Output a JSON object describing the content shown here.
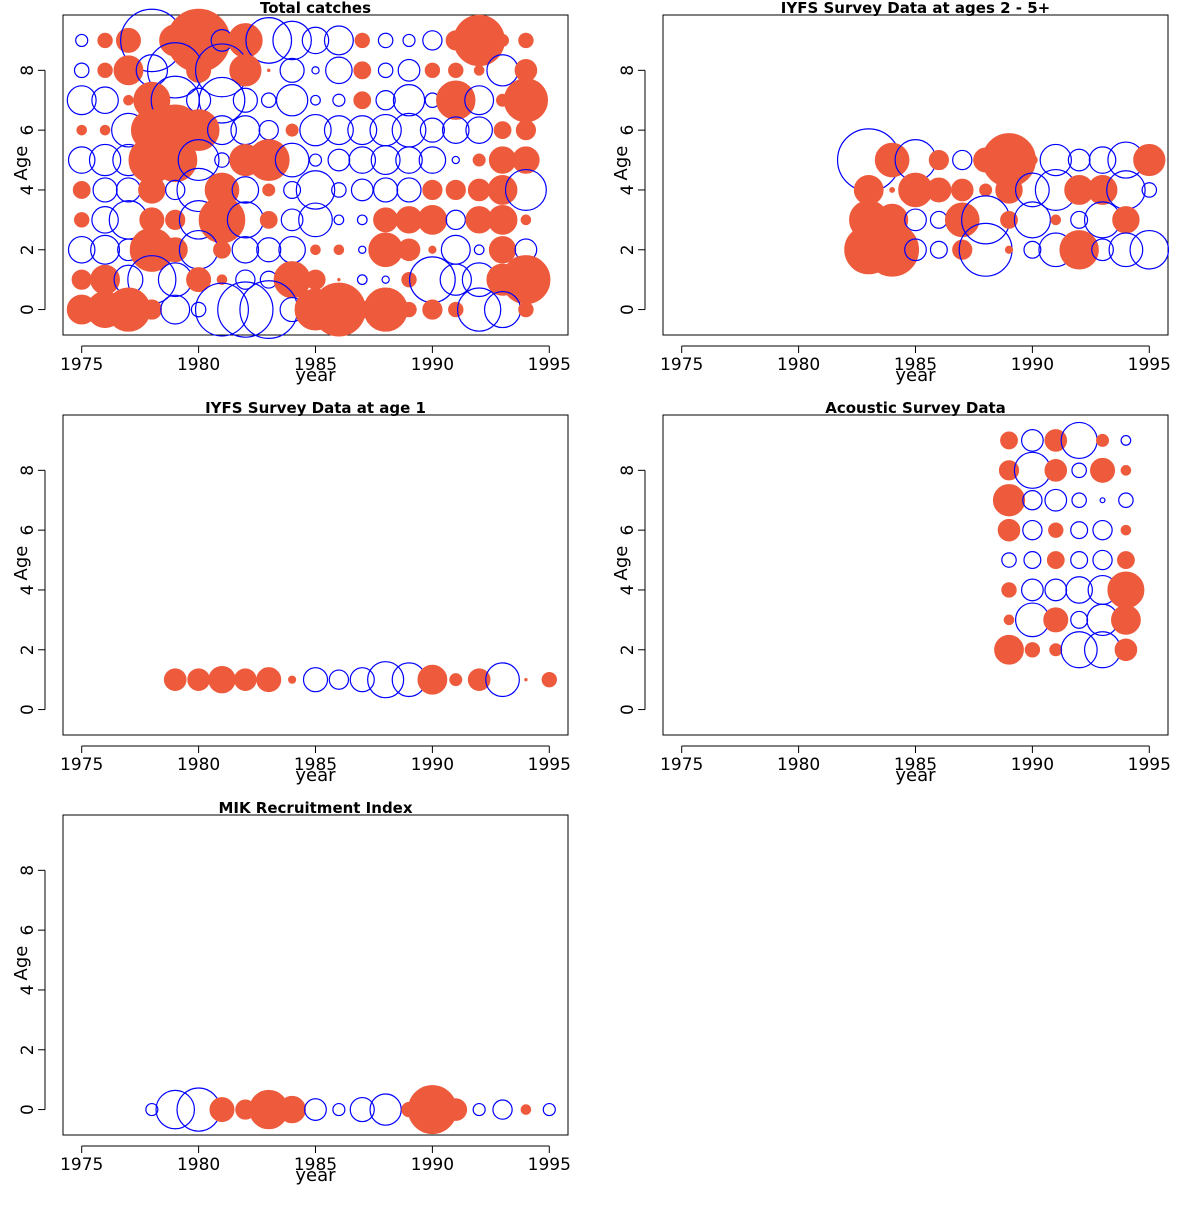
{
  "colors": {
    "positive": "#ee5a3c",
    "negative": "#0000ff",
    "frame": "#000000"
  },
  "chart_data": [
    {
      "type": "scatter",
      "title": "Total catches",
      "xlabel": "year",
      "ylabel": "Age",
      "xlim": [
        1974.2,
        1995.8
      ],
      "ylim": [
        -0.85,
        9.85
      ],
      "xticks": [
        "1975",
        "1980",
        "1985",
        "1990",
        "1995"
      ],
      "yticks": [
        "0",
        "2",
        "4",
        "6",
        "8"
      ],
      "x_start": 1975,
      "rows": [
        {
          "age": 9,
          "sizes": [
            -0.5,
            0.6,
            1.0,
            -2.6,
            1.3,
            2.6,
            -0.9,
            1.4,
            -1.9,
            -1.6,
            -1.1,
            -1.2,
            0.6,
            -0.6,
            -0.5,
            -0.8,
            0.8,
            2.1,
            0.5,
            0.6
          ]
        },
        {
          "age": 8,
          "sizes": [
            -0.6,
            0.6,
            1.2,
            -1.3,
            -2.3,
            1.0,
            -2.2,
            1.3,
            0.1,
            -1.0,
            -0.3,
            -1.1,
            0.7,
            -0.6,
            -0.9,
            0.6,
            0.6,
            0.4,
            -1.3,
            0.9
          ]
        },
        {
          "age": 7,
          "sizes": [
            -1.2,
            -1.1,
            0.4,
            1.5,
            -2.0,
            -1.0,
            -1.9,
            -1.0,
            -0.6,
            -1.3,
            -0.4,
            -0.5,
            0.7,
            -0.8,
            -1.3,
            -0.6,
            1.6,
            -1.2,
            0.5,
            1.8
          ]
        },
        {
          "age": 6,
          "sizes": [
            0.4,
            0.4,
            -1.4,
            1.7,
            2.1,
            1.7,
            -1.2,
            -1.2,
            -0.8,
            0.5,
            -1.3,
            -1.2,
            -1.2,
            -1.3,
            -1.4,
            -1.0,
            -1.1,
            -1.1,
            0.7,
            0.8
          ]
        },
        {
          "age": 5,
          "sizes": [
            -1.1,
            -1.3,
            -1.3,
            1.9,
            1.8,
            -1.7,
            -0.6,
            1.3,
            1.7,
            -1.4,
            -0.5,
            -0.9,
            -1.1,
            -1.2,
            -1.1,
            -1.1,
            -0.3,
            0.5,
            1.1,
            1.1
          ]
        },
        {
          "age": 4,
          "sizes": [
            0.7,
            -1.0,
            -1.0,
            1.1,
            -0.8,
            -1.8,
            1.4,
            -1.1,
            0.5,
            -0.7,
            -1.6,
            -0.6,
            -0.9,
            -1.0,
            -1.0,
            0.8,
            0.8,
            0.9,
            1.2,
            -1.7
          ]
        },
        {
          "age": 3,
          "sizes": [
            0.6,
            -1.1,
            -1.6,
            1.0,
            0.8,
            -1.6,
            1.9,
            -1.5,
            0.7,
            -0.9,
            -1.4,
            -0.4,
            -0.4,
            1.0,
            1.1,
            1.2,
            -0.8,
            1.1,
            1.2,
            0.4
          ]
        },
        {
          "age": 2,
          "sizes": [
            -1.1,
            -1.2,
            -0.9,
            1.8,
            1.0,
            -1.6,
            0.7,
            -1.1,
            -1.0,
            -1.1,
            0.4,
            0.4,
            -0.3,
            1.4,
            0.9,
            0.3,
            -1.2,
            -0.4,
            1.1,
            -0.9
          ]
        },
        {
          "age": 1,
          "sizes": [
            0.8,
            1.2,
            -1.2,
            -2.0,
            -1.4,
            1.0,
            0.4,
            -0.8,
            -0.7,
            1.5,
            0.8,
            0.1,
            -0.4,
            -0.3,
            0.6,
            -1.9,
            -1.3,
            -1.4,
            1.3,
            2.0
          ]
        },
        {
          "age": 0,
          "sizes": [
            1.2,
            1.5,
            1.8,
            0.8,
            -1.2,
            -0.6,
            -2.2,
            -2.3,
            -2.4,
            -1.0,
            1.7,
            2.2,
            0.7,
            1.8,
            0.6,
            0.8,
            0.6,
            -1.8,
            -1.5,
            0.6
          ]
        }
      ]
    },
    {
      "type": "scatter",
      "title": "IYFS Survey Data at ages 2 - 5+",
      "xlabel": "year",
      "ylabel": "Age",
      "xlim": [
        1974.2,
        1995.8
      ],
      "ylim": [
        -0.85,
        9.85
      ],
      "xticks": [
        "1975",
        "1980",
        "1985",
        "1990",
        "1995"
      ],
      "yticks": [
        "0",
        "2",
        "4",
        "6",
        "8"
      ],
      "x_start": 1983,
      "rows": [
        {
          "age": 5,
          "sizes": [
            -2.6,
            1.4,
            -1.7,
            0.8,
            -0.8,
            1.0,
            2.2,
            0.4,
            -1.3,
            -0.9,
            -1.1,
            -1.5,
            1.3
          ]
        },
        {
          "age": 4,
          "sizes": [
            1.2,
            0.2,
            1.4,
            1.0,
            0.9,
            0.5,
            1.1,
            -1.4,
            -1.7,
            1.2,
            1.2,
            -1.6,
            -0.6
          ]
        },
        {
          "age": 3,
          "sizes": [
            1.6,
            1.3,
            -0.9,
            -0.7,
            1.4,
            -2.0,
            0.7,
            -1.5,
            0.4,
            -0.7,
            -1.5,
            1.1
          ]
        },
        {
          "age": 2,
          "sizes": [
            2.0,
            2.2,
            -0.9,
            -0.7,
            0.8,
            -2.2,
            0.3,
            -0.7,
            -1.4,
            1.6,
            -0.9,
            -1.4,
            -1.6
          ]
        }
      ]
    },
    {
      "type": "scatter",
      "title": "IYFS Survey Data at age 1",
      "xlabel": "year",
      "ylabel": "Age",
      "xlim": [
        1974.2,
        1995.8
      ],
      "ylim": [
        -0.85,
        9.85
      ],
      "xticks": [
        "1975",
        "1980",
        "1985",
        "1990",
        "1995"
      ],
      "yticks": [
        "0",
        "2",
        "4",
        "6",
        "8"
      ],
      "x_start": 1979,
      "rows": [
        {
          "age": 1,
          "sizes": [
            0.9,
            0.9,
            1.1,
            0.9,
            1.0,
            0.3,
            -1.0,
            -0.8,
            -1.0,
            -1.5,
            -1.4,
            1.2,
            0.5,
            0.9,
            -1.4,
            0.1,
            0.6
          ]
        }
      ]
    },
    {
      "type": "scatter",
      "title": "Acoustic Survey Data",
      "xlabel": "year",
      "ylabel": "Age",
      "xlim": [
        1974.2,
        1995.8
      ],
      "ylim": [
        -0.85,
        9.85
      ],
      "xticks": [
        "1975",
        "1980",
        "1985",
        "1990",
        "1995"
      ],
      "yticks": [
        "0",
        "2",
        "4",
        "6",
        "8"
      ],
      "x_start": 1989,
      "rows": [
        {
          "age": 9,
          "sizes": [
            0.7,
            -0.9,
            0.9,
            -1.5,
            0.5,
            -0.4
          ]
        },
        {
          "age": 8,
          "sizes": [
            0.8,
            -1.5,
            0.9,
            -0.6,
            1.0,
            0.4
          ]
        },
        {
          "age": 7,
          "sizes": [
            1.3,
            -0.8,
            -0.9,
            -0.6,
            -0.2,
            -0.6
          ]
        },
        {
          "age": 6,
          "sizes": [
            0.9,
            -0.8,
            0.6,
            -0.7,
            -0.8,
            0.4
          ]
        },
        {
          "age": 5,
          "sizes": [
            -0.6,
            -0.7,
            0.7,
            -0.7,
            -0.8,
            0.7
          ]
        },
        {
          "age": 4,
          "sizes": [
            0.6,
            -0.9,
            -0.9,
            -1.1,
            -1.2,
            1.5
          ]
        },
        {
          "age": 3,
          "sizes": [
            0.4,
            -1.4,
            1.0,
            -0.7,
            -1.3,
            1.2
          ]
        },
        {
          "age": 2,
          "sizes": [
            1.2,
            0.6,
            0.5,
            -1.5,
            -1.5,
            0.9
          ]
        }
      ]
    },
    {
      "type": "scatter",
      "title": "MIK Recruitment Index",
      "xlabel": "year",
      "ylabel": "Age",
      "xlim": [
        1974.2,
        1995.8
      ],
      "ylim": [
        -0.85,
        9.85
      ],
      "xticks": [
        "1975",
        "1980",
        "1985",
        "1990",
        "1995"
      ],
      "yticks": [
        "0",
        "2",
        "4",
        "6",
        "8"
      ],
      "x_start": 1978,
      "rows": [
        {
          "age": 0,
          "sizes": [
            -0.5,
            -1.6,
            -1.8,
            1.0,
            0.8,
            1.6,
            1.1,
            -0.9,
            -0.5,
            -1.0,
            -1.3,
            0.6,
            2.0,
            0.9,
            -0.5,
            -0.8,
            0.4,
            -0.5
          ]
        }
      ]
    }
  ]
}
